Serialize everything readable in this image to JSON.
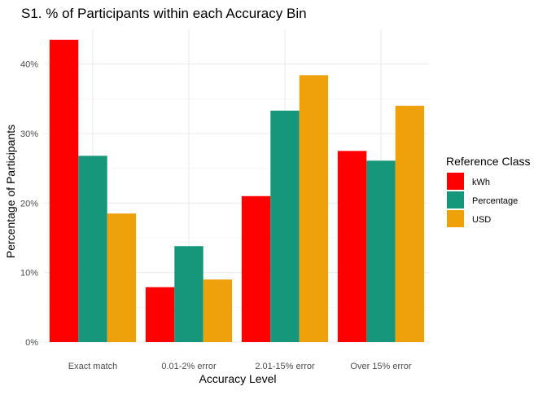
{
  "chart_data": {
    "type": "bar",
    "title": "S1. % of Participants within each Accuracy Bin",
    "xlabel": "Accuracy Level",
    "ylabel": "Percentage of Participants",
    "categories": [
      "Exact match",
      "0.01-2% error",
      "2.01-15% error",
      "Over 15% error"
    ],
    "series": [
      {
        "name": "kWh",
        "color": "#ff0000",
        "values": [
          43.5,
          7.9,
          21.0,
          27.5
        ]
      },
      {
        "name": "Percentage",
        "color": "#16967a",
        "values": [
          26.8,
          13.8,
          33.3,
          26.1
        ]
      },
      {
        "name": "USD",
        "color": "#efa10b",
        "values": [
          18.5,
          9.0,
          38.4,
          34.0
        ]
      }
    ],
    "ylim": [
      0,
      45
    ],
    "yticks": [
      0,
      10,
      20,
      30,
      40
    ],
    "ytick_labels": [
      "0%",
      "10%",
      "20%",
      "30%",
      "40%"
    ],
    "grid": true,
    "legend": {
      "title": "Reference Class",
      "position": "right"
    }
  }
}
